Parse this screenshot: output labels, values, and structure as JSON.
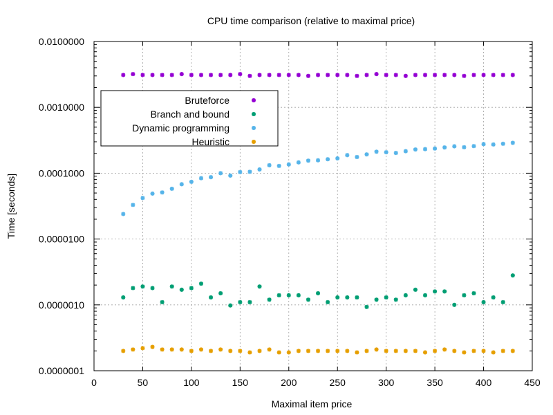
{
  "chart_data": {
    "type": "scatter",
    "title": "CPU time comparison (relative to maximal price)",
    "xlabel": "Maximal item price",
    "ylabel": "Time [seconds]",
    "xlim": [
      0,
      450
    ],
    "ylim": [
      1e-07,
      0.01
    ],
    "yscale": "log",
    "grid": true,
    "legend_position": "top-left",
    "x_ticks": [
      0,
      50,
      100,
      150,
      200,
      250,
      300,
      350,
      400,
      450
    ],
    "x_tick_labels": [
      "0",
      "50",
      "100",
      "150",
      "200",
      "250",
      "300",
      "350",
      "400",
      "450"
    ],
    "y_ticks": [
      1e-07,
      1e-06,
      1e-05,
      0.0001,
      0.001,
      0.01
    ],
    "y_tick_labels": [
      "0.0000001",
      "0.0000010",
      "0.0000100",
      "0.0001000",
      "0.0010000",
      "0.0100000"
    ],
    "x": [
      30,
      40,
      50,
      60,
      70,
      80,
      90,
      100,
      110,
      120,
      130,
      140,
      150,
      160,
      170,
      180,
      190,
      200,
      210,
      220,
      230,
      240,
      250,
      260,
      270,
      280,
      290,
      300,
      310,
      320,
      330,
      340,
      350,
      360,
      370,
      380,
      390,
      400,
      410,
      420,
      430
    ],
    "series": [
      {
        "name": "Bruteforce",
        "color": "#9400d3",
        "values": [
          0.0031,
          0.0032,
          0.0031,
          0.0031,
          0.0031,
          0.0031,
          0.0032,
          0.0031,
          0.0031,
          0.0031,
          0.0031,
          0.0031,
          0.0032,
          0.003,
          0.0031,
          0.0031,
          0.0031,
          0.0031,
          0.0031,
          0.003,
          0.0031,
          0.0031,
          0.0031,
          0.0031,
          0.003,
          0.0031,
          0.0032,
          0.0031,
          0.0031,
          0.003,
          0.0031,
          0.0031,
          0.0031,
          0.0031,
          0.0031,
          0.003,
          0.0031,
          0.0031,
          0.0031,
          0.0031,
          0.0031
        ]
      },
      {
        "name": "Branch and bound",
        "color": "#009e73",
        "values": [
          1.3e-06,
          1.8e-06,
          1.9e-06,
          1.8e-06,
          1.1e-06,
          1.9e-06,
          1.7e-06,
          1.8e-06,
          2.1e-06,
          1.3e-06,
          1.5e-06,
          9.8e-07,
          1.1e-06,
          1.1e-06,
          1.9e-06,
          1.2e-06,
          1.4e-06,
          1.4e-06,
          1.4e-06,
          1.2e-06,
          1.5e-06,
          1.1e-06,
          1.3e-06,
          1.3e-06,
          1.3e-06,
          9.3e-07,
          1.2e-06,
          1.3e-06,
          1.2e-06,
          1.4e-06,
          1.7e-06,
          1.4e-06,
          1.6e-06,
          1.6e-06,
          1e-06,
          1.4e-06,
          1.5e-06,
          1.1e-06,
          1.3e-06,
          1.1e-06,
          2.8e-06
        ]
      },
      {
        "name": "Dynamic programming",
        "color": "#56b4e9",
        "values": [
          2.4e-05,
          3.3e-05,
          4.2e-05,
          4.9e-05,
          5.1e-05,
          5.8e-05,
          6.8e-05,
          7.4e-05,
          8.4e-05,
          8.7e-05,
          0.0001,
          9.2e-05,
          0.000104,
          0.000105,
          0.000114,
          0.000132,
          0.000129,
          0.000136,
          0.000146,
          0.000155,
          0.000157,
          0.000163,
          0.000168,
          0.000188,
          0.000176,
          0.000193,
          0.000212,
          0.000208,
          0.000203,
          0.000216,
          0.000229,
          0.000232,
          0.000237,
          0.000246,
          0.000256,
          0.000248,
          0.000258,
          0.000276,
          0.000273,
          0.00028,
          0.000289
        ]
      },
      {
        "name": "Heuristic",
        "color": "#e69f00",
        "values": [
          2e-07,
          2.1e-07,
          2.2e-07,
          2.3e-07,
          2.1e-07,
          2.1e-07,
          2.1e-07,
          2e-07,
          2.1e-07,
          2e-07,
          2.1e-07,
          2e-07,
          2e-07,
          1.9e-07,
          2e-07,
          2.1e-07,
          1.9e-07,
          1.9e-07,
          2e-07,
          2e-07,
          2e-07,
          2e-07,
          2e-07,
          2e-07,
          1.9e-07,
          2e-07,
          2.1e-07,
          2e-07,
          2e-07,
          2e-07,
          2e-07,
          1.9e-07,
          2e-07,
          2.1e-07,
          2e-07,
          1.9e-07,
          2e-07,
          2e-07,
          1.9e-07,
          2e-07,
          2e-07
        ]
      }
    ]
  }
}
